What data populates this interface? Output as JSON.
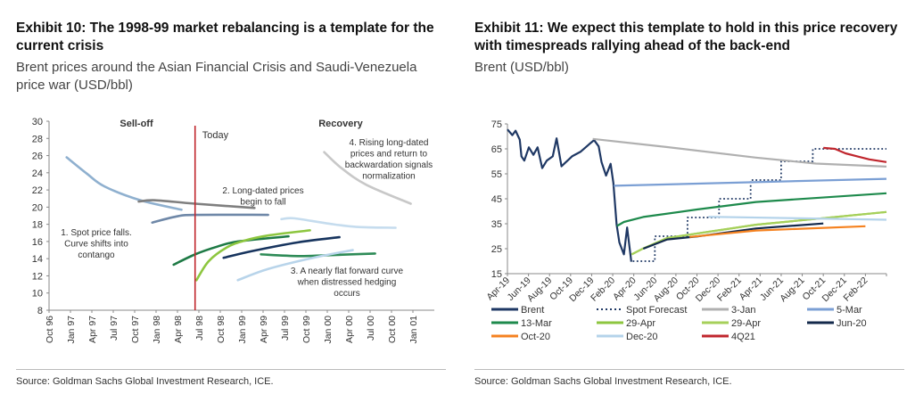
{
  "left": {
    "title": "Exhibit 10: The 1998-99 market rebalancing is a template for the current crisis",
    "subtitle": "Brent prices around the Asian Financial Crisis and Saudi-Venezuela price war (USD/bbl)",
    "source": "Source: Goldman Sachs Global Investment Research, ICE."
  },
  "right": {
    "title": "Exhibit 11: We expect this template to hold in this price recovery with timespreads rallying ahead of the back-end",
    "subtitle": "Brent (USD/bbl)",
    "source": "Source: Goldman Sachs Global Investment Research, ICE."
  },
  "chart_data": [
    {
      "type": "line",
      "ylim": [
        8,
        30
      ],
      "yticks": [
        8,
        10,
        12,
        14,
        16,
        18,
        20,
        22,
        24,
        26,
        28,
        30
      ],
      "xlim": [
        "1996-10-01",
        "2001-04-01"
      ],
      "xtick_labels": [
        "Oct 96",
        "Jan 97",
        "Apr 97",
        "Jul 97",
        "Oct 97",
        "Jan 98",
        "Apr 98",
        "Jul 98",
        "Oct 98",
        "Jan 99",
        "Apr 99",
        "Jul 99",
        "Oct 99",
        "Jan 00",
        "Apr 00",
        "Jul 00",
        "Oct 00",
        "Jan 01"
      ],
      "grid": false,
      "region_labels": [
        "Sell-off",
        "Recovery"
      ],
      "today_line": {
        "label": "Today",
        "x": "1998-06-15",
        "color": "#c0272d"
      },
      "annotations": [
        {
          "lines": [
            "1. Spot price falls.",
            "Curve shifts into",
            "contango"
          ]
        },
        {
          "lines": [
            "2. Long-dated prices",
            "begin to fall"
          ]
        },
        {
          "lines": [
            "3. A nearly flat forward curve",
            "when distressed hedging",
            "occurs"
          ]
        },
        {
          "lines": [
            "4. Rising long-dated",
            "prices  and  return to",
            "backwardation signals",
            "normalization"
          ]
        }
      ],
      "series": [
        {
          "color": "#8fb0cf",
          "points": [
            [
              "1996-12-15",
              25.8
            ],
            [
              "1997-03-10",
              23.9
            ],
            [
              "1997-05-25",
              22.4
            ],
            [
              "1997-10-25",
              20.8
            ],
            [
              "1998-04-18",
              19.7
            ]
          ]
        },
        {
          "color": "#7f7f7f",
          "points": [
            [
              "1997-10-18",
              20.65
            ],
            [
              "1997-12-28",
              20.8
            ],
            [
              "1998-06-15",
              20.4
            ],
            [
              "1999-02-25",
              19.9
            ]
          ]
        },
        {
          "color": "#6f88a8",
          "points": [
            [
              "1997-12-15",
              18.2
            ],
            [
              "1998-03-25",
              18.9
            ],
            [
              "1998-06-15",
              19.1
            ],
            [
              "1999-04-22",
              19.1
            ]
          ]
        },
        {
          "color": "#c8c8c8",
          "points": [
            [
              "1999-12-18",
              26.4
            ],
            [
              "2000-02-28",
              24.6
            ],
            [
              "2000-06-15",
              22.6
            ],
            [
              "2000-12-22",
              20.4
            ]
          ]
        },
        {
          "color": "#c5dcee",
          "points": [
            [
              "1999-06-18",
              18.6
            ],
            [
              "1999-08-10",
              18.7
            ],
            [
              "2000-01-01",
              18.1
            ],
            [
              "2000-05-04",
              17.7
            ],
            [
              "2000-10-18",
              17.6
            ]
          ]
        },
        {
          "color": "#1e7a45",
          "points": [
            [
              "1998-03-15",
              13.3
            ],
            [
              "1998-06-15",
              14.5
            ],
            [
              "1998-09-18",
              15.4
            ],
            [
              "1998-12-15",
              16.0
            ],
            [
              "1999-07-18",
              16.6
            ]
          ]
        },
        {
          "color": "#8dc63f",
          "points": [
            [
              "1998-06-21",
              11.5
            ],
            [
              "1998-08-12",
              13.7
            ],
            [
              "1998-10-28",
              15.3
            ],
            [
              "1999-01-12",
              16.1
            ],
            [
              "1999-04-22",
              16.7
            ],
            [
              "1999-10-18",
              17.3
            ]
          ]
        },
        {
          "color": "#17345e",
          "points": [
            [
              "1998-10-15",
              14.1
            ],
            [
              "1999-02-18",
              14.9
            ],
            [
              "1999-08-28",
              15.9
            ],
            [
              "2000-02-22",
              16.5
            ]
          ]
        },
        {
          "color": "#2e8b57",
          "points": [
            [
              "1999-03-22",
              14.5
            ],
            [
              "1999-08-28",
              14.3
            ],
            [
              "2000-01-01",
              14.4
            ],
            [
              "2000-07-22",
              14.6
            ]
          ]
        },
        {
          "color": "#b8d4ea",
          "points": [
            [
              "1998-12-15",
              11.5
            ],
            [
              "1999-04-22",
              12.8
            ],
            [
              "1999-11-01",
              14.1
            ],
            [
              "2000-04-18",
              15.0
            ]
          ]
        }
      ]
    },
    {
      "type": "line",
      "ylim": [
        15,
        75
      ],
      "yticks": [
        15,
        25,
        35,
        45,
        55,
        65,
        75
      ],
      "xlim": [
        "2019-04-01",
        "2022-04-01"
      ],
      "xtick_labels": [
        "Apr-19",
        "Jun-19",
        "Aug-19",
        "Oct-19",
        "Dec-19",
        "Feb-20",
        "Apr-20",
        "Jun-20",
        "Aug-20",
        "Oct-20",
        "Dec-20",
        "Feb-21",
        "Apr-21",
        "Jun-21",
        "Aug-21",
        "Oct-21",
        "Dec-21",
        "Feb-22"
      ],
      "grid": false,
      "legend_position": "bottom",
      "series": [
        {
          "name": "Brent",
          "color": "#1f3864",
          "style": "solid",
          "points": [
            [
              "2019-04-01",
              72.8
            ],
            [
              "2019-04-15",
              70.5
            ],
            [
              "2019-04-24",
              72.3
            ],
            [
              "2019-05-06",
              68.7
            ],
            [
              "2019-05-11",
              62
            ],
            [
              "2019-05-19",
              60.3
            ],
            [
              "2019-06-02",
              65.6
            ],
            [
              "2019-06-15",
              62.6
            ],
            [
              "2019-06-27",
              65.6
            ],
            [
              "2019-07-10",
              57.3
            ],
            [
              "2019-07-23",
              60.3
            ],
            [
              "2019-08-10",
              62
            ],
            [
              "2019-08-21",
              69.2
            ],
            [
              "2019-09-05",
              58
            ],
            [
              "2019-10-05",
              62
            ],
            [
              "2019-10-30",
              63.9
            ],
            [
              "2019-11-25",
              67
            ],
            [
              "2019-12-08",
              68.5
            ],
            [
              "2019-12-21",
              66
            ],
            [
              "2019-12-29",
              59.7
            ],
            [
              "2020-01-12",
              54.3
            ],
            [
              "2020-01-25",
              59
            ],
            [
              "2020-02-03",
              51.3
            ],
            [
              "2020-02-12",
              34.7
            ],
            [
              "2020-02-20",
              27.5
            ],
            [
              "2020-03-03",
              22.7
            ],
            [
              "2020-03-12",
              33.5
            ],
            [
              "2020-03-24",
              19.8
            ]
          ]
        },
        {
          "name": "Spot Forecast",
          "color": "#1f3864",
          "style": "dotted",
          "points": [
            [
              "2020-03-28",
              20
            ],
            [
              "2020-06-01",
              20
            ],
            [
              "2020-06-01",
              30
            ],
            [
              "2020-09-04",
              30
            ],
            [
              "2020-09-04",
              37.5
            ],
            [
              "2020-12-04",
              37.5
            ],
            [
              "2020-12-04",
              45
            ],
            [
              "2021-03-04",
              45
            ],
            [
              "2021-03-04",
              52.5
            ],
            [
              "2021-06-01",
              52.5
            ],
            [
              "2021-06-01",
              60
            ],
            [
              "2021-09-01",
              60
            ],
            [
              "2021-09-01",
              65
            ],
            [
              "2022-04-01",
              65
            ]
          ]
        },
        {
          "name": "3-Jan",
          "color": "#b0b0b0",
          "style": "solid",
          "points": [
            [
              "2019-12-04",
              69.0
            ],
            [
              "2020-07-06",
              65.7
            ],
            [
              "2021-03-19",
              61.5
            ],
            [
              "2021-09-10",
              59.1
            ],
            [
              "2022-04-01",
              57.9
            ]
          ]
        },
        {
          "name": "5-Mar",
          "color": "#7b9fd4",
          "style": "solid",
          "points": [
            [
              "2020-02-04",
              50.2
            ],
            [
              "2022-04-01",
              53.0
            ]
          ]
        },
        {
          "name": "13-Mar",
          "color": "#1e8a4c",
          "style": "solid",
          "points": [
            [
              "2020-02-13",
              34.1
            ],
            [
              "2020-03-03",
              35.7
            ],
            [
              "2020-04-28",
              37.7
            ],
            [
              "2020-10-01",
              40.7
            ],
            [
              "2021-03-19",
              43.7
            ],
            [
              "2022-04-01",
              47.2
            ]
          ]
        },
        {
          "name": "29-Apr",
          "color": "#8dc63f",
          "style": "solid",
          "points": [
            [
              "2020-03-25",
              22.7
            ],
            [
              "2020-04-28",
              25.1
            ],
            [
              "2020-07-06",
              29.3
            ],
            [
              "2021-03-19",
              34.6
            ],
            [
              "2022-04-01",
              39.7
            ]
          ]
        },
        {
          "name": "29-Apr",
          "color": "#a6d05a",
          "style": "solid",
          "points": [
            [
              "2020-03-25",
              22.7
            ],
            [
              "2020-04-28",
              25.1
            ],
            [
              "2020-07-06",
              29.3
            ],
            [
              "2021-03-19",
              34.6
            ],
            [
              "2022-04-01",
              39.7
            ]
          ]
        },
        {
          "name": "Jun-20",
          "color": "#13294b",
          "style": "solid",
          "points": [
            [
              "2020-04-28",
              25.0
            ],
            [
              "2020-07-06",
              28.7
            ],
            [
              "2020-10-01",
              29.9
            ],
            [
              "2021-03-19",
              33.1
            ],
            [
              "2021-10-01",
              35.1
            ]
          ]
        },
        {
          "name": "Oct-20",
          "color": "#f58220",
          "style": "solid",
          "points": [
            [
              "2020-09-10",
              29.7
            ],
            [
              "2021-03-19",
              32.3
            ],
            [
              "2022-02-01",
              34.0
            ]
          ]
        },
        {
          "name": "Dec-20",
          "color": "#b4d3ea",
          "style": "solid",
          "points": [
            [
              "2020-11-04",
              37.8
            ],
            [
              "2022-04-01",
              36.6
            ]
          ]
        },
        {
          "name": "4Q21",
          "color": "#c0262d",
          "style": "solid",
          "points": [
            [
              "2021-10-01",
              65.4
            ],
            [
              "2021-11-04",
              65.0
            ],
            [
              "2021-12-04",
              63.2
            ],
            [
              "2022-01-08",
              62.0
            ],
            [
              "2022-02-12",
              60.8
            ],
            [
              "2022-04-01",
              59.7
            ]
          ]
        }
      ]
    }
  ]
}
